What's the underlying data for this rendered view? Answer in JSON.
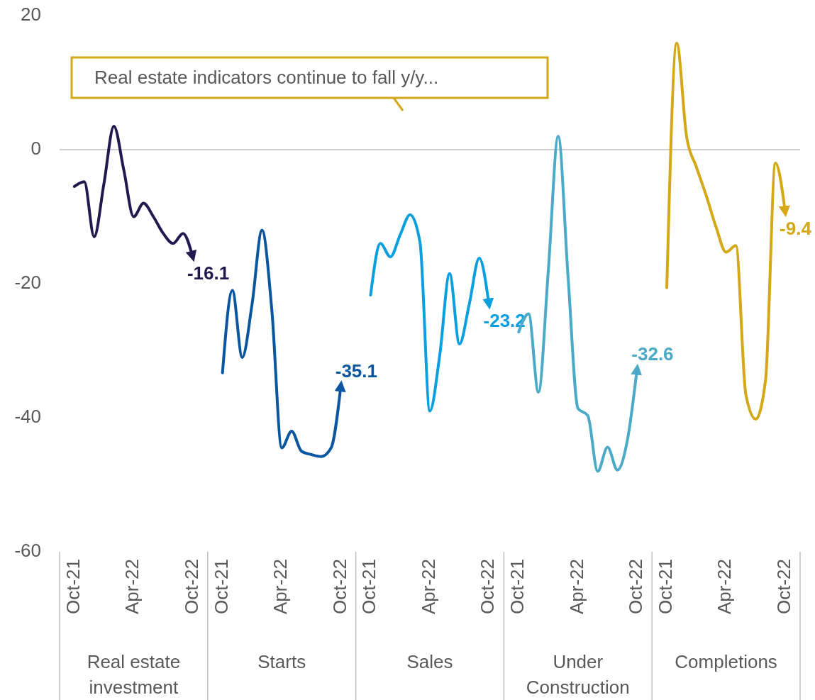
{
  "chart_data": [
    {
      "type": "line",
      "xlabel": "Real estate investment",
      "categories": [
        "Oct-21",
        null,
        null,
        null,
        null,
        null,
        "Apr-22",
        null,
        null,
        null,
        null,
        null,
        "Oct-22"
      ],
      "ylim": [
        -60,
        20
      ],
      "yticks": [
        -60,
        -40,
        -20,
        0,
        20
      ],
      "ref_lines": [
        {
          "axis": "y",
          "value": 0,
          "color": "#bfbfbf"
        }
      ],
      "annotations": [
        "Real estate indicators continue to fall y/y..."
      ],
      "series": [
        {
          "color": "#211a4e",
          "values": [
            -5.5,
            -4.8,
            -13,
            -5,
            3.5,
            -3,
            -10,
            -8,
            -10,
            -12.5,
            -14,
            -12.5,
            -16.1
          ],
          "value_labels": [
            null,
            null,
            null,
            null,
            null,
            null,
            null,
            null,
            null,
            null,
            null,
            null,
            "-16.1"
          ]
        }
      ]
    },
    {
      "type": "line",
      "xlabel": "Starts",
      "categories": [
        "Oct-21",
        null,
        null,
        null,
        null,
        null,
        "Apr-22",
        null,
        null,
        null,
        null,
        null,
        "Oct-22"
      ],
      "ylim": [
        -60,
        20
      ],
      "tick_labels": "x",
      "ref_lines": [
        {
          "axis": "y",
          "value": 0,
          "color": "#bfbfbf"
        }
      ],
      "series": [
        {
          "color": "#0b56a0",
          "values": [
            -33.3,
            -21,
            -31,
            -23,
            -12,
            -24,
            -44.5,
            -42,
            -45,
            -45.5,
            -45.8,
            -44.5,
            -35.1
          ],
          "value_labels": [
            null,
            null,
            null,
            null,
            null,
            null,
            null,
            null,
            null,
            null,
            null,
            null,
            "-35.1"
          ]
        }
      ]
    },
    {
      "type": "line",
      "xlabel": "Sales",
      "categories": [
        "Oct-21",
        null,
        null,
        null,
        null,
        null,
        "Apr-22",
        null,
        null,
        null,
        null,
        null,
        "Oct-22"
      ],
      "ylim": [
        -60,
        20
      ],
      "tick_labels": "x",
      "ref_lines": [
        {
          "axis": "y",
          "value": 0,
          "color": "#bfbfbf"
        }
      ],
      "series": [
        {
          "color": "#0aa0e0",
          "values": [
            -21.7,
            -14,
            -16,
            -12.7,
            -9.7,
            -13.8,
            -39,
            -30.7,
            -18.5,
            -29,
            -23,
            -16.2,
            -23.2
          ],
          "value_labels": [
            null,
            null,
            null,
            null,
            null,
            null,
            null,
            null,
            null,
            null,
            null,
            null,
            "-23.2"
          ]
        }
      ]
    },
    {
      "type": "line",
      "xlabel": "Under Construction",
      "categories": [
        "Oct-21",
        null,
        null,
        null,
        null,
        null,
        "Apr-22",
        null,
        null,
        null,
        null,
        null,
        "Oct-22"
      ],
      "ylim": [
        -60,
        20
      ],
      "tick_labels": "x",
      "ref_lines": [
        {
          "axis": "y",
          "value": 0,
          "color": "#bfbfbf"
        }
      ],
      "series": [
        {
          "color": "#4aaac8",
          "values": [
            -27.2,
            -24.5,
            -36.2,
            -18,
            2,
            -19,
            -38.6,
            -39.7,
            -48,
            -44.4,
            -47.8,
            -43.4,
            -32.6
          ],
          "value_labels": [
            null,
            null,
            null,
            null,
            null,
            null,
            null,
            null,
            null,
            null,
            null,
            null,
            "-32.6"
          ]
        }
      ]
    },
    {
      "type": "line",
      "xlabel": "Completions",
      "categories": [
        "Oct-21",
        null,
        null,
        null,
        null,
        null,
        "Apr-22",
        null,
        null,
        null,
        null,
        null,
        "Oct-22"
      ],
      "ylim": [
        -60,
        20
      ],
      "tick_labels": "x",
      "ref_lines": [
        {
          "axis": "y",
          "value": 0,
          "color": "#bfbfbf"
        }
      ],
      "series": [
        {
          "color": "#d4a817",
          "values": [
            -20.6,
            15.9,
            2,
            -2.6,
            -6.9,
            -11.6,
            -15.3,
            -14.3,
            -36.5,
            -40.2,
            -34.4,
            -2,
            -9.4
          ],
          "value_labels": [
            null,
            null,
            null,
            null,
            null,
            null,
            null,
            null,
            null,
            null,
            null,
            null,
            "-9.4"
          ]
        }
      ]
    }
  ]
}
